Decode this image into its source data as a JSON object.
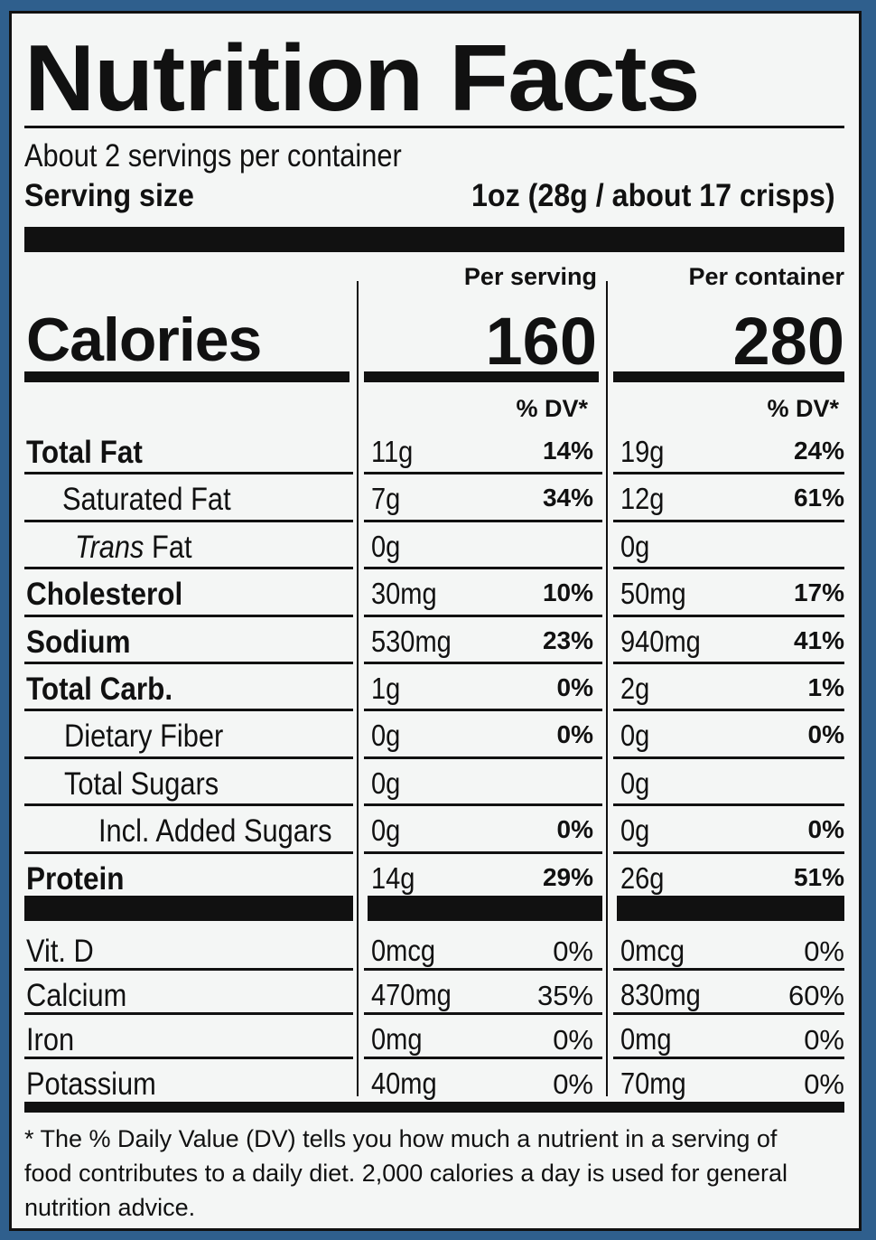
{
  "title": "Nutrition Facts",
  "servings_per_container": "About 2 servings per container",
  "serving_size_label": "Serving size",
  "serving_size_value": "1oz (28g / about 17 crisps)",
  "per_serving_label": "Per serving",
  "per_container_label": "Per container",
  "calories_label": "Calories",
  "calories_serving": "160",
  "calories_container": "280",
  "dv_label": "% DV*",
  "nutrients": [
    {
      "name": "Total Fat",
      "s_amt": "11g",
      "s_dv": "14%",
      "c_amt": "19g",
      "c_dv": "24%"
    },
    {
      "name": "Saturated Fat",
      "s_amt": "7g",
      "s_dv": "34%",
      "c_amt": "12g",
      "c_dv": "61%"
    },
    {
      "name_italic": "Trans",
      "name": " Fat",
      "s_amt": "0g",
      "s_dv": "",
      "c_amt": "0g",
      "c_dv": ""
    },
    {
      "name": "Cholesterol",
      "s_amt": "30mg",
      "s_dv": "10%",
      "c_amt": "50mg",
      "c_dv": "17%"
    },
    {
      "name": "Sodium",
      "s_amt": "530mg",
      "s_dv": "23%",
      "c_amt": "940mg",
      "c_dv": "41%"
    },
    {
      "name": "Total Carb.",
      "s_amt": "1g",
      "s_dv": "0%",
      "c_amt": "2g",
      "c_dv": "1%"
    },
    {
      "name": "Dietary Fiber",
      "s_amt": "0g",
      "s_dv": "0%",
      "c_amt": "0g",
      "c_dv": "0%"
    },
    {
      "name": "Total Sugars",
      "s_amt": "0g",
      "s_dv": "",
      "c_amt": "0g",
      "c_dv": ""
    },
    {
      "name": "Incl. Added Sugars",
      "s_amt": "0g",
      "s_dv": "0%",
      "c_amt": "0g",
      "c_dv": "0%"
    },
    {
      "name": "Protein",
      "s_amt": "14g",
      "s_dv": "29%",
      "c_amt": "26g",
      "c_dv": "51%"
    }
  ],
  "vitamins": [
    {
      "name": "Vit. D",
      "s_amt": "0mcg",
      "s_dv": "0%",
      "c_amt": "0mcg",
      "c_dv": "0%"
    },
    {
      "name": "Calcium",
      "s_amt": "470mg",
      "s_dv": "35%",
      "c_amt": "830mg",
      "c_dv": "60%"
    },
    {
      "name": "Iron",
      "s_amt": "0mg",
      "s_dv": "0%",
      "c_amt": "0mg",
      "c_dv": "0%"
    },
    {
      "name": "Potassium",
      "s_amt": "40mg",
      "s_dv": "0%",
      "c_amt": "70mg",
      "c_dv": "0%"
    }
  ],
  "footnote": "* The % Daily Value (DV) tells you how much a nutrient in a serving of food contributes to a daily diet. 2,000 calories a day is used for general nutrition advice."
}
